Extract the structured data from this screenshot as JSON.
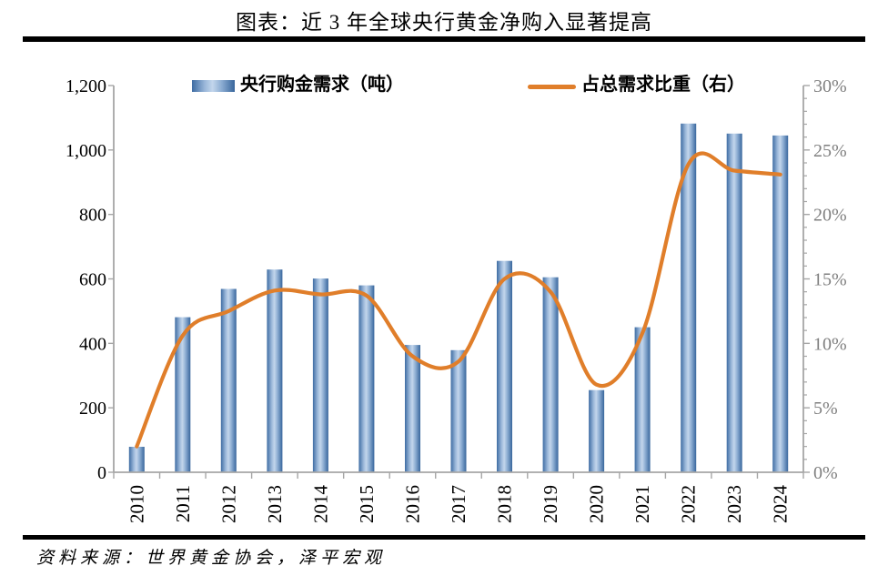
{
  "title": "图表：近 3 年全球央行黄金净购入显著提高",
  "source": "资料来源：世界黄金协会，泽平宏观",
  "legend": {
    "bars_label": "央行购金需求（吨）",
    "line_label": "占总需求比重（右）"
  },
  "colors": {
    "line": "#e07e2a",
    "axis": "#a6a6a6",
    "left_tick_text": "#000000",
    "right_tick_text": "#7f7f7f",
    "x_tick_text": "#000000",
    "rule": "#000000",
    "bar_gradient_stops": [
      [
        "0%",
        "#3e6ca3"
      ],
      [
        "30%",
        "#9ab7d9"
      ],
      [
        "48%",
        "#c3d6ec"
      ],
      [
        "70%",
        "#8aabd1"
      ],
      [
        "100%",
        "#38669c"
      ]
    ]
  },
  "chart_data": {
    "type": "combo",
    "categories": [
      "2010",
      "2011",
      "2012",
      "2013",
      "2014",
      "2015",
      "2016",
      "2017",
      "2018",
      "2019",
      "2020",
      "2021",
      "2022",
      "2023",
      "2024"
    ],
    "series": [
      {
        "name": "央行购金需求（吨）",
        "type": "bar",
        "axis": "left",
        "values": [
          79,
          481,
          569,
          629,
          601,
          580,
          395,
          379,
          656,
          605,
          255,
          450,
          1082,
          1051,
          1045
        ]
      },
      {
        "name": "占总需求比重（右）",
        "type": "line",
        "axis": "right",
        "values": [
          2.0,
          10.6,
          12.5,
          14.1,
          13.8,
          13.7,
          9.0,
          8.6,
          15.0,
          14.0,
          6.8,
          10.8,
          23.9,
          23.4,
          23.1
        ]
      }
    ],
    "left_axis": {
      "min": 0,
      "max": 1200,
      "step": 200,
      "tick_labels": [
        "1,200",
        "1,000",
        "800",
        "600",
        "400",
        "200",
        "0"
      ]
    },
    "right_axis": {
      "min": 0,
      "max": 30,
      "step": 5,
      "minor_step": 1,
      "tick_labels": [
        "30%",
        "25%",
        "20%",
        "15%",
        "10%",
        "5%",
        "0%"
      ]
    },
    "grid": false,
    "legend_position": "top",
    "x_labels_rotated": true
  }
}
